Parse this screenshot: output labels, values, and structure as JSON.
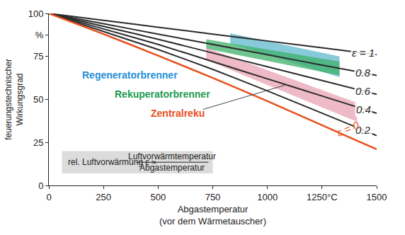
{
  "chart_data": {
    "type": "line",
    "xlabel": [
      "Abgastemperatur",
      "(vor dem Wärmetauscher)"
    ],
    "ylabel": [
      "feuerungstechnischer",
      "Wirkungsgrad"
    ],
    "xlim": [
      0,
      1500
    ],
    "ylim": [
      0,
      100
    ],
    "xticks": [
      0,
      250,
      500,
      750,
      1000,
      {
        "value": 1250,
        "label": "1250°C"
      },
      1500
    ],
    "yticks": [
      0,
      25,
      50,
      75,
      {
        "value": 87.5,
        "label": "%"
      },
      100
    ],
    "grid": false,
    "x": [
      0,
      250,
      500,
      750,
      1000,
      1250,
      1500
    ],
    "series": [
      {
        "name": "Regeneratorbrenner",
        "type": "band",
        "color": "#5fb8cc",
        "x": [
          830,
          1330
        ],
        "values": [
          88.5,
          75
        ],
        "lower": [
          82.5,
          63
        ]
      },
      {
        "name": "Rekuperatorbrenner",
        "type": "band",
        "color": "#3fb06a",
        "x": [
          720,
          1330
        ],
        "values": [
          85,
          72
        ],
        "lower": [
          79.5,
          64
        ]
      },
      {
        "name": "Zentralreku",
        "type": "band",
        "color": "#e8a3b5",
        "x": [
          720,
          1410
        ],
        "values": [
          80,
          48
        ],
        "lower": [
          73,
          37
        ]
      },
      {
        "name": "ε = 1",
        "type": "line",
        "color": "#2b2b2b",
        "values": [
          100,
          96,
          92,
          88,
          84,
          80,
          76
        ]
      },
      {
        "name": "0.8",
        "type": "line",
        "color": "#2b2b2b",
        "values": [
          100,
          94,
          88,
          82,
          76,
          70,
          64
        ]
      },
      {
        "name": "0.6",
        "type": "line",
        "color": "#2b2b2b",
        "values": [
          100,
          92.5,
          85,
          77,
          69,
          61,
          53
        ]
      },
      {
        "name": "0.4",
        "type": "line",
        "color": "#2b2b2b",
        "values": [
          100,
          91,
          82,
          72,
          62,
          52,
          42
        ]
      },
      {
        "name": "0.2",
        "type": "line",
        "color": "#2b2b2b",
        "values": [
          100,
          89.5,
          79,
          67.5,
          55,
          42,
          29
        ]
      },
      {
        "name": "ε = 0",
        "type": "line",
        "color": "#e8501e",
        "values": [
          100,
          88,
          75.5,
          62.5,
          49,
          35,
          21
        ]
      }
    ],
    "annotations": [
      {
        "text": "rel. Luftvorwärmung",
        "symbol": "ε ≈",
        "numerator": "Luftvorwärmtemperatur",
        "denominator": "Abgastemperatur"
      }
    ]
  }
}
